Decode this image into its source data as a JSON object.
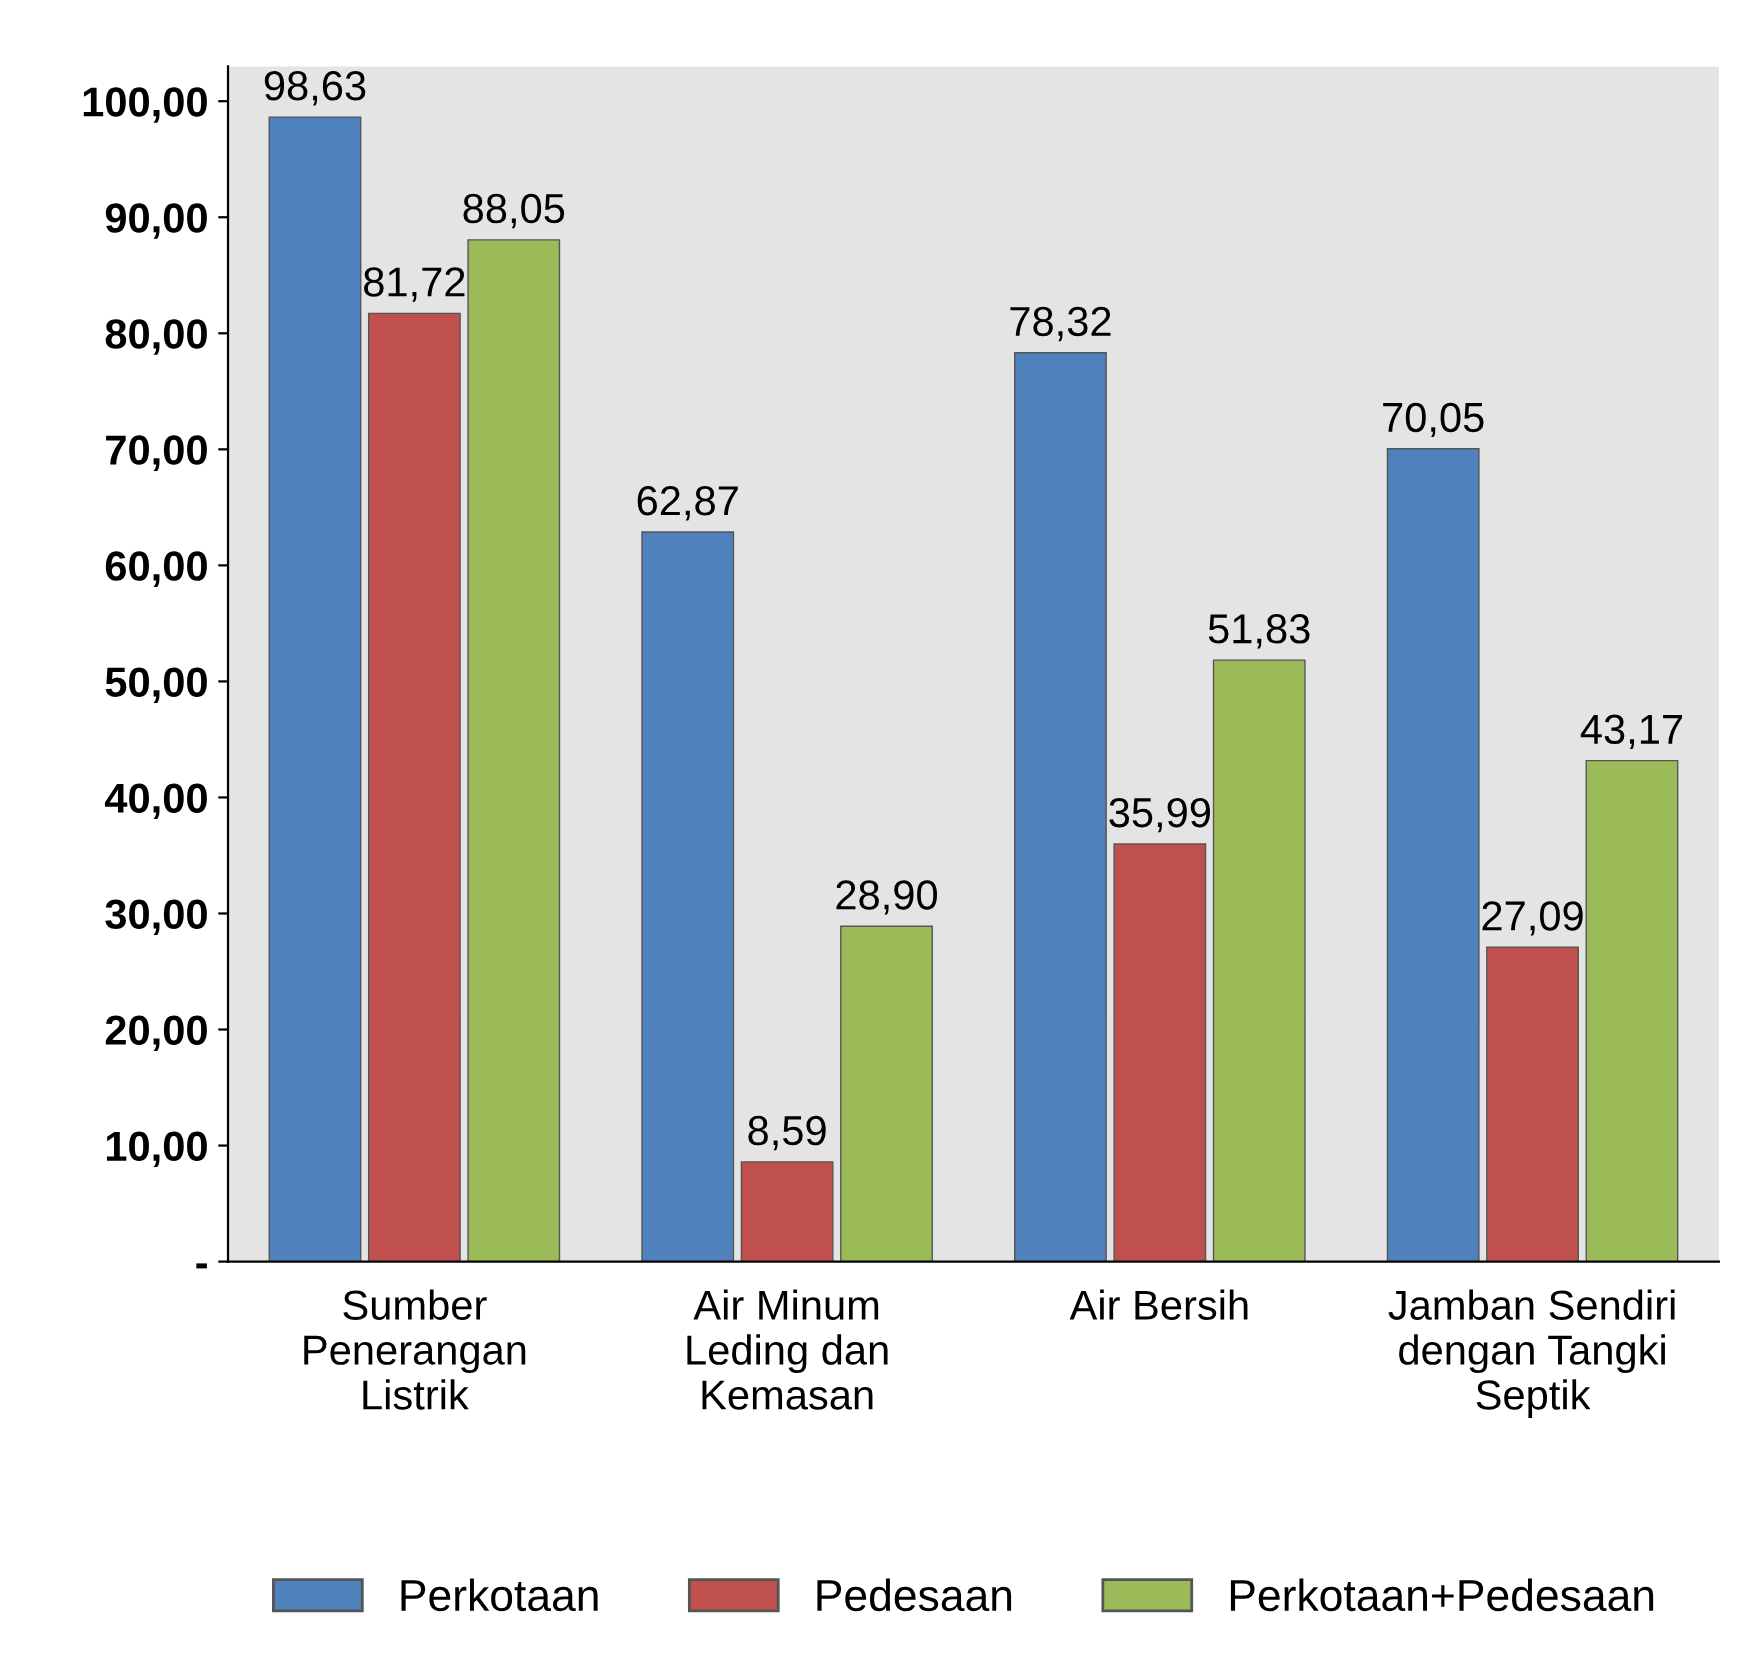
{
  "chart_data": {
    "type": "bar",
    "categories": [
      "Sumber Penerangan Listrik",
      "Air Minum Leding dan Kemasan",
      "Air Bersih",
      "Jamban Sendiri dengan Tangki Septik"
    ],
    "series": [
      {
        "name": "Perkotaan",
        "color": "#4f81bd",
        "values": [
          98.63,
          62.87,
          78.32,
          70.05
        ],
        "value_labels": [
          "98,63",
          "62,87",
          "78,32",
          "70,05"
        ]
      },
      {
        "name": "Pedesaan",
        "color": "#c0504d",
        "values": [
          81.72,
          8.59,
          35.99,
          27.09
        ],
        "value_labels": [
          "81,72",
          "8,59",
          "35,99",
          "27,09"
        ]
      },
      {
        "name": "Perkotaan+Pedesaan",
        "color": "#9bbb59",
        "values": [
          88.05,
          28.9,
          51.83,
          43.17
        ],
        "value_labels": [
          "88,05",
          "28,90",
          "51,83",
          "43,17"
        ]
      }
    ],
    "ylim": [
      0,
      103
    ],
    "yticks": [
      {
        "value": 0,
        "label": "-"
      },
      {
        "value": 10,
        "label": "10,00"
      },
      {
        "value": 20,
        "label": "20,00"
      },
      {
        "value": 30,
        "label": "30,00"
      },
      {
        "value": 40,
        "label": "40,00"
      },
      {
        "value": 50,
        "label": "50,00"
      },
      {
        "value": 60,
        "label": "60,00"
      },
      {
        "value": 70,
        "label": "70,00"
      },
      {
        "value": 80,
        "label": "80,00"
      },
      {
        "value": 90,
        "label": "90,00"
      },
      {
        "value": 100,
        "label": "100,00"
      }
    ],
    "grid": false,
    "legend": "bottom"
  }
}
